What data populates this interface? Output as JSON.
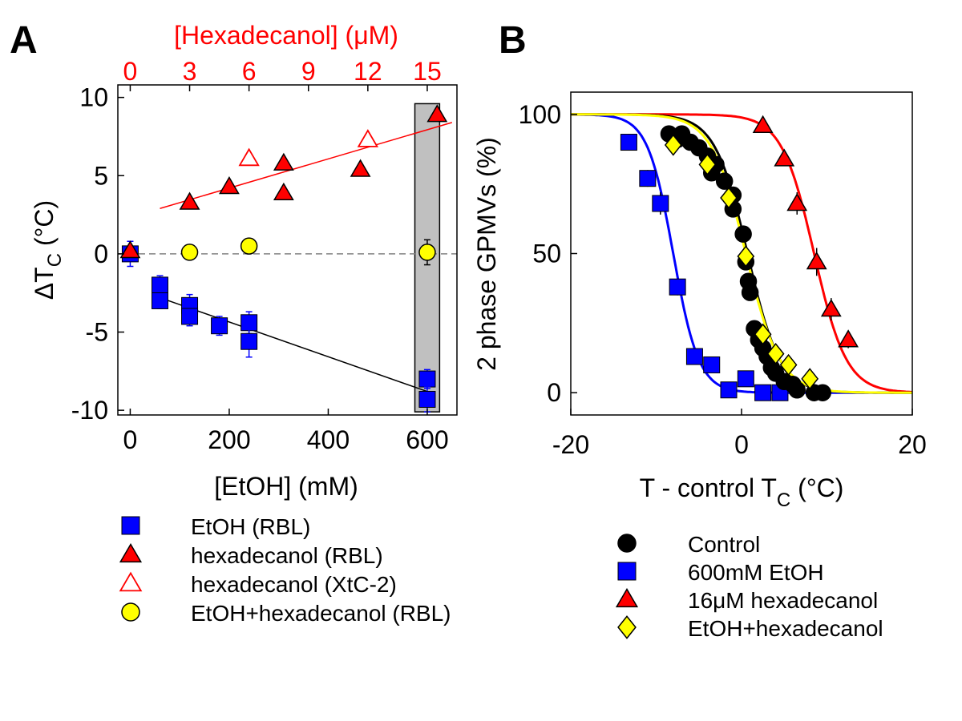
{
  "panel_a_label": "A",
  "panel_b_label": "B",
  "chart_data": [
    {
      "id": "A",
      "type": "scatter",
      "xlabel": "[EtOH] (mM)",
      "ylabel_main": "ΔT",
      "ylabel_sub": "C",
      "ylabel_unit": "(°C)",
      "xlim": [
        -25,
        660
      ],
      "ylim": [
        -10.3,
        10.8
      ],
      "xticks": [
        0,
        200,
        400,
        600
      ],
      "yticks": [
        10,
        5,
        0,
        -5,
        -10
      ],
      "xticklabels": [
        "0",
        "200",
        "400",
        "600"
      ],
      "yticklabels": [
        "10",
        "5",
        "0",
        "-5",
        "-10"
      ],
      "top_axis": {
        "label": "[Hexadecanol] (μM)",
        "ticks": [
          "0",
          "3",
          "6",
          "9",
          "12",
          "15"
        ],
        "positions_mM": [
          0,
          120,
          240,
          360,
          480,
          600
        ],
        "color": "#ff0000"
      },
      "highlight_region": {
        "x": [
          575,
          625
        ],
        "y": [
          -10.1,
          9.6
        ],
        "color": "#c0c0c0"
      },
      "zero_line": {
        "y": 0,
        "style": "dashed",
        "color": "#808080"
      },
      "series": [
        {
          "name": "EtOH (RBL)",
          "marker": "square",
          "color": "#0000ff",
          "points": [
            {
              "x": 0,
              "y": 0.0,
              "err": 0.8
            },
            {
              "x": 60,
              "y": -2.0,
              "err": 0.6
            },
            {
              "x": 60,
              "y": -3.0,
              "err": 0.5
            },
            {
              "x": 120,
              "y": -3.3,
              "err": 0.7
            },
            {
              "x": 120,
              "y": -4.0,
              "err": 0.6
            },
            {
              "x": 180,
              "y": -4.6,
              "err": 0.6
            },
            {
              "x": 240,
              "y": -4.4,
              "err": 0.7
            },
            {
              "x": 240,
              "y": -5.6,
              "err": 1.0
            },
            {
              "x": 600,
              "y": -8.0,
              "err": 0.6
            },
            {
              "x": 600,
              "y": -9.3,
              "err": 0.8
            }
          ],
          "fit": {
            "x": [
              60,
              600
            ],
            "y": [
              -2.8,
              -8.8
            ],
            "color": "#000000"
          }
        },
        {
          "name": "hexadecanol (RBL)",
          "marker": "triangle",
          "color": "#ff0000",
          "points": [
            {
              "x": 0,
              "y": 0.2
            },
            {
              "x": 120,
              "y": 3.3
            },
            {
              "x": 200,
              "y": 4.3
            },
            {
              "x": 310,
              "y": 5.8
            },
            {
              "x": 310,
              "y": 3.9
            },
            {
              "x": 465,
              "y": 5.4
            },
            {
              "x": 620,
              "y": 8.9
            }
          ],
          "fit": {
            "x": [
              60,
              650
            ],
            "y": [
              2.9,
              8.4
            ],
            "color": "#ff0000"
          }
        },
        {
          "name": "hexadecanol (XtC-2)",
          "marker": "triangle-open",
          "color": "#ff0000",
          "points": [
            {
              "x": 240,
              "y": 6.1
            },
            {
              "x": 480,
              "y": 7.3
            }
          ]
        },
        {
          "name": "EtOH+hexadecanol (RBL)",
          "marker": "circle",
          "color": "#ffff00",
          "points": [
            {
              "x": 120,
              "y": 0.1,
              "err": 0.3
            },
            {
              "x": 240,
              "y": 0.5,
              "err": 0.4
            },
            {
              "x": 600,
              "y": 0.1,
              "err": 0.8
            }
          ]
        }
      ],
      "legend": [
        {
          "label": "EtOH (RBL)",
          "marker": "square",
          "color": "#0000ff"
        },
        {
          "label": "hexadecanol (RBL)",
          "marker": "triangle",
          "color": "#ff0000"
        },
        {
          "label": "hexadecanol (XtC-2)",
          "marker": "triangle-open",
          "color": "#ff0000"
        },
        {
          "label": "EtOH+hexadecanol (RBL)",
          "marker": "circle",
          "color": "#ffff00"
        }
      ]
    },
    {
      "id": "B",
      "type": "scatter",
      "xlabel_main": "T - control T",
      "xlabel_sub": "C",
      "xlabel_unit": "(°C)",
      "ylabel": "2 phase GPMVs (%)",
      "xlim": [
        -20,
        20
      ],
      "ylim": [
        -8,
        108
      ],
      "xticks": [
        -20,
        0,
        20
      ],
      "yticks": [
        0,
        50,
        100
      ],
      "xticklabels": [
        "-20",
        "0",
        "20"
      ],
      "yticklabels": [
        "0",
        "50",
        "100"
      ],
      "series": [
        {
          "name": "Control",
          "marker": "circle",
          "color": "#000000",
          "points": [
            {
              "x": -8.5,
              "y": 93
            },
            {
              "x": -7.5,
              "y": 91
            },
            {
              "x": -7.0,
              "y": 93
            },
            {
              "x": -6.0,
              "y": 90
            },
            {
              "x": -5.0,
              "y": 88
            },
            {
              "x": -4.0,
              "y": 85
            },
            {
              "x": -3.0,
              "y": 82
            },
            {
              "x": -3.5,
              "y": 79
            },
            {
              "x": -2.0,
              "y": 76
            },
            {
              "x": -1.0,
              "y": 71
            },
            {
              "x": -1.0,
              "y": 66
            },
            {
              "x": 0.2,
              "y": 57
            },
            {
              "x": 0.5,
              "y": 47
            },
            {
              "x": 0.8,
              "y": 40
            },
            {
              "x": 1.0,
              "y": 36
            },
            {
              "x": 1.5,
              "y": 23
            },
            {
              "x": 2.0,
              "y": 19
            },
            {
              "x": 2.5,
              "y": 16
            },
            {
              "x": 3.0,
              "y": 13
            },
            {
              "x": 3.5,
              "y": 9
            },
            {
              "x": 4.0,
              "y": 7
            },
            {
              "x": 5.0,
              "y": 4
            },
            {
              "x": 6.0,
              "y": 3
            },
            {
              "x": 6.5,
              "y": 1
            },
            {
              "x": 8.5,
              "y": 0
            },
            {
              "x": 9.5,
              "y": 0
            }
          ],
          "fit": {
            "x0": 0.7,
            "width": 1.9,
            "color": "#000000"
          }
        },
        {
          "name": "600mM EtOH",
          "marker": "square",
          "color": "#0000ff",
          "points": [
            {
              "x": -13.2,
              "y": 90,
              "err": 3
            },
            {
              "x": -11.0,
              "y": 77,
              "err": 3
            },
            {
              "x": -9.5,
              "y": 68,
              "err": 4
            },
            {
              "x": -7.5,
              "y": 38,
              "err": 3
            },
            {
              "x": -5.5,
              "y": 13,
              "err": 2
            },
            {
              "x": -3.5,
              "y": 10,
              "err": 2
            },
            {
              "x": -1.5,
              "y": 1
            },
            {
              "x": 0.5,
              "y": 5,
              "err": 2
            },
            {
              "x": 2.5,
              "y": 0
            },
            {
              "x": 4.5,
              "y": 0
            }
          ],
          "fit": {
            "x0": -8.0,
            "width": 1.5,
            "color": "#0000ff"
          }
        },
        {
          "name": "16μM hexadecanol",
          "marker": "triangle",
          "color": "#ff0000",
          "points": [
            {
              "x": 2.5,
              "y": 96
            },
            {
              "x": 5.0,
              "y": 84
            },
            {
              "x": 6.5,
              "y": 68,
              "err": 4
            },
            {
              "x": 8.8,
              "y": 47,
              "err": 5
            },
            {
              "x": 10.5,
              "y": 30,
              "err": 4
            },
            {
              "x": 12.5,
              "y": 19,
              "err": 3
            }
          ],
          "fit": {
            "x0": 8.5,
            "width": 1.9,
            "color": "#ff0000"
          }
        },
        {
          "name": "EtOH+hexadecanol",
          "marker": "diamond",
          "color": "#ffff00",
          "points": [
            {
              "x": -8.0,
              "y": 89
            },
            {
              "x": -4.0,
              "y": 82
            },
            {
              "x": -1.5,
              "y": 70
            },
            {
              "x": 0.5,
              "y": 49
            },
            {
              "x": 2.5,
              "y": 21
            },
            {
              "x": 4.0,
              "y": 14
            },
            {
              "x": 5.5,
              "y": 10
            },
            {
              "x": 8.0,
              "y": 5
            }
          ],
          "fit": {
            "x0": 0.5,
            "width": 2.0,
            "color": "#ffff00"
          }
        }
      ],
      "legend": [
        {
          "label": "Control",
          "marker": "circle",
          "color": "#000000"
        },
        {
          "label": "600mM EtOH",
          "marker": "square",
          "color": "#0000ff"
        },
        {
          "label": "16μM hexadecanol",
          "marker": "triangle",
          "color": "#ff0000"
        },
        {
          "label": "EtOH+hexadecanol",
          "marker": "diamond",
          "color": "#ffff00"
        }
      ]
    }
  ]
}
